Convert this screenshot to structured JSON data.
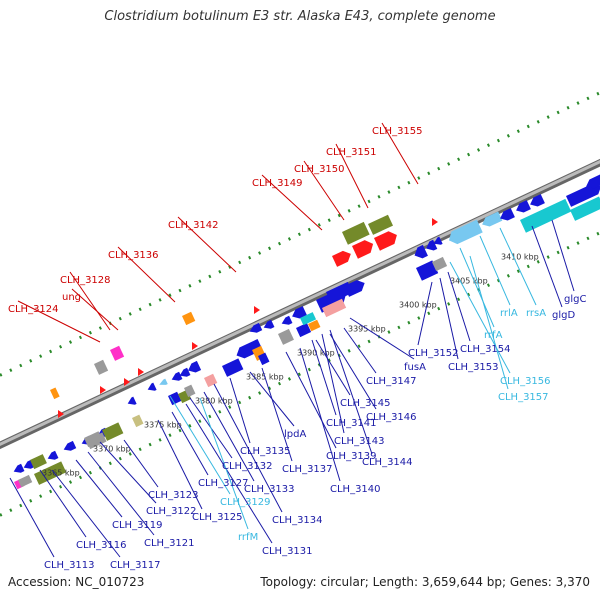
{
  "title": "Clostridium botulinum E3 str. Alaska E43, complete genome",
  "footer": {
    "accession": "Accession: NC_010723",
    "stats": "Topology: circular; Length: 3,659,644 bp; Genes: 3,370"
  },
  "colors": {
    "forward_label": "#cc0000",
    "reverse_label": "#1a1aa6",
    "rna_label": "#38b8e0",
    "cds_blue": "#1515d8",
    "cds_red": "#ff1a1a",
    "rrna": "#18c8d0",
    "trna": "#78c8f0",
    "olive": "#748a2a",
    "gray": "#9a9a9a",
    "orange": "#ff9410",
    "magenta": "#ff30c8",
    "pink": "#f4a0a0",
    "tan": "#c8c080",
    "backbone": "#999999",
    "dot_track": "#2a8a2a"
  },
  "ticks": [
    {
      "label": "3365 kbp",
      "kbp": 3365
    },
    {
      "label": "3370 kbp",
      "kbp": 3370
    },
    {
      "label": "3375 kbp",
      "kbp": 3375
    },
    {
      "label": "3380 kbp",
      "kbp": 3380
    },
    {
      "label": "3385 kbp",
      "kbp": 3385
    },
    {
      "label": "3390 kbp",
      "kbp": 3390
    },
    {
      "label": "3395 kbp",
      "kbp": 3395
    },
    {
      "label": "3400 kbp",
      "kbp": 3400
    },
    {
      "label": "3405 kbp",
      "kbp": 3405
    },
    {
      "label": "3410 kbp",
      "kbp": 3410
    }
  ],
  "forward_labels": [
    "CLH_3124",
    "CLH_3128",
    "ung",
    "CLH_3136",
    "CLH_3142",
    "CLH_3149",
    "CLH_3150",
    "CLH_3151",
    "CLH_3155"
  ],
  "reverse_labels": [
    "CLH_3113",
    "CLH_3116",
    "CLH_3117",
    "CLH_3119",
    "CLH_3121",
    "CLH_3122",
    "CLH_3123",
    "CLH_3125",
    "CLH_3127",
    "CLH_3131",
    "CLH_3132",
    "CLH_3133",
    "CLH_3134",
    "CLH_3135",
    "lpdA",
    "CLH_3137",
    "CLH_3139",
    "CLH_3140",
    "CLH_3141",
    "CLH_3143",
    "CLH_3144",
    "CLH_3145",
    "CLH_3146",
    "CLH_3147",
    "fusA",
    "CLH_3152",
    "CLH_3153",
    "CLH_3154",
    "glgC",
    "glgD"
  ],
  "rna_labels": [
    "CLH_3129",
    "rrfM",
    "CLH_3156",
    "CLH_3157",
    "rrfA",
    "rrlA",
    "rrsA"
  ]
}
